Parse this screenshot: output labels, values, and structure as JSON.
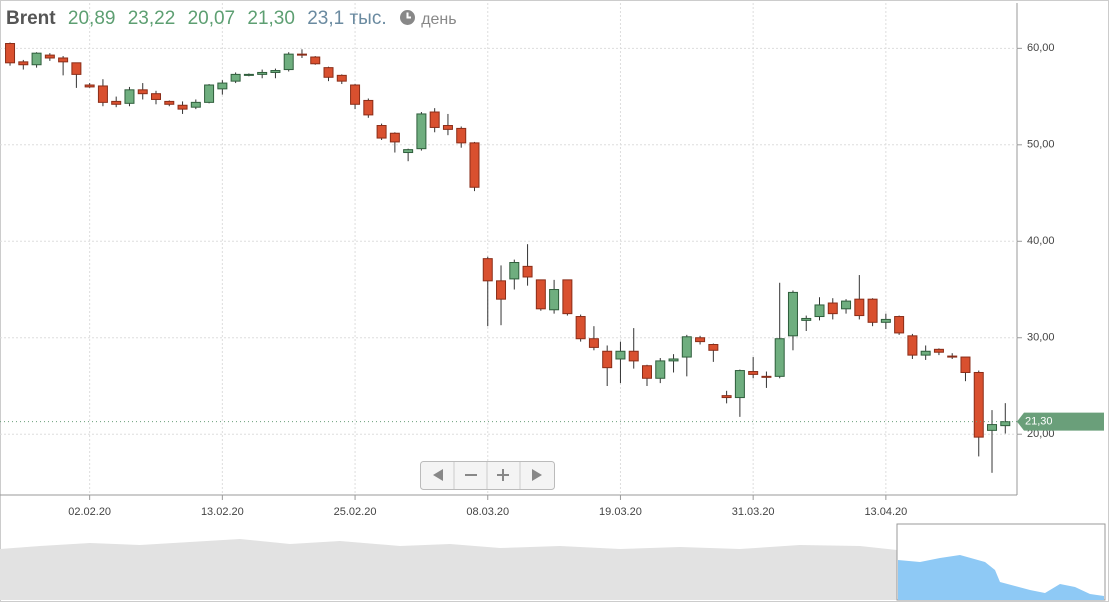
{
  "header": {
    "symbol": "Brent",
    "open": "20,89",
    "high": "23,22",
    "low": "20,07",
    "close": "21,30",
    "volume": "23,1 тыс.",
    "interval": "день"
  },
  "chart_data": {
    "type": "candlestick",
    "categories": [
      null,
      null,
      null,
      null,
      null,
      null,
      "02.02.20",
      null,
      null,
      null,
      null,
      null,
      null,
      null,
      null,
      null,
      "13.02.20",
      null,
      null,
      null,
      null,
      null,
      null,
      null,
      null,
      null,
      "25.02.20",
      null,
      null,
      null,
      null,
      null,
      null,
      null,
      null,
      null,
      "08.03.20",
      null,
      null,
      null,
      null,
      null,
      null,
      null,
      null,
      null,
      "19.03.20",
      null,
      null,
      null,
      null,
      null,
      null,
      null,
      null,
      null,
      "31.03.20",
      null,
      null,
      null,
      null,
      null,
      null,
      null,
      null,
      null,
      "13.04.20",
      null,
      null,
      null,
      null,
      null,
      null,
      null,
      null,
      null
    ],
    "open": [
      60.5,
      58.6,
      58.3,
      59.3,
      59.0,
      58.5,
      56.2,
      56.1,
      54.5,
      54.3,
      55.7,
      55.3,
      54.5,
      54.1,
      53.9,
      54.4,
      55.8,
      56.6,
      57.2,
      57.3,
      57.5,
      57.8,
      59.4,
      59.1,
      58.0,
      57.2,
      56.2,
      54.6,
      52.0,
      51.2,
      49.2,
      49.6,
      53.4,
      52.0,
      51.7,
      50.2,
      38.2,
      35.9,
      36.1,
      37.4,
      36.0,
      32.9,
      36.0,
      32.2,
      29.9,
      28.6,
      27.8,
      28.6,
      27.1,
      25.8,
      27.6,
      28.0,
      30.0,
      29.3,
      24.0,
      23.8,
      26.5,
      26.0,
      26.0,
      30.2,
      31.8,
      32.2,
      33.6,
      33.0,
      34.0,
      34.0,
      31.6,
      32.2,
      30.2,
      28.2,
      28.8,
      28.1,
      28.0,
      26.4,
      20.4,
      20.89
    ],
    "high": [
      60.6,
      58.8,
      59.6,
      59.5,
      59.2,
      58.5,
      56.4,
      56.8,
      55.0,
      56.0,
      56.4,
      55.6,
      54.6,
      54.5,
      54.7,
      56.3,
      56.7,
      57.5,
      57.4,
      57.8,
      57.9,
      59.6,
      59.9,
      59.2,
      58.1,
      57.3,
      56.3,
      54.8,
      52.2,
      51.3,
      49.6,
      53.4,
      53.8,
      53.2,
      51.9,
      50.3,
      38.4,
      37.5,
      38.1,
      39.7,
      36.0,
      36.0,
      36.0,
      32.4,
      31.2,
      29.2,
      29.6,
      31.0,
      27.2,
      27.9,
      28.3,
      30.3,
      30.2,
      29.4,
      24.5,
      26.7,
      28.0,
      26.5,
      35.7,
      34.9,
      32.3,
      34.2,
      34.1,
      34.0,
      36.5,
      34.1,
      32.5,
      32.3,
      30.4,
      29.2,
      28.9,
      28.4,
      28.0,
      26.6,
      22.5,
      23.22
    ],
    "low": [
      58.2,
      57.8,
      58.0,
      58.7,
      57.2,
      55.9,
      55.9,
      54.0,
      53.9,
      54.0,
      54.7,
      54.2,
      54.0,
      53.2,
      53.7,
      54.3,
      55.2,
      56.4,
      57.1,
      56.9,
      56.9,
      57.6,
      59.0,
      58.3,
      56.6,
      56.3,
      53.7,
      52.8,
      50.5,
      49.2,
      48.3,
      49.4,
      51.3,
      51.0,
      49.7,
      45.2,
      31.2,
      31.3,
      35.0,
      35.4,
      32.8,
      32.5,
      32.3,
      29.6,
      28.7,
      25.0,
      25.3,
      26.8,
      25.0,
      25.3,
      26.4,
      26.0,
      29.3,
      27.5,
      23.2,
      21.8,
      25.8,
      24.8,
      25.8,
      28.7,
      30.7,
      31.8,
      31.9,
      32.5,
      31.9,
      31.2,
      30.9,
      30.3,
      27.8,
      27.7,
      28.2,
      27.8,
      25.5,
      17.7,
      16.0,
      20.07
    ],
    "close": [
      58.5,
      58.3,
      59.5,
      59.0,
      58.6,
      57.3,
      56.0,
      54.4,
      54.2,
      55.7,
      55.3,
      54.7,
      54.2,
      53.7,
      54.4,
      56.2,
      56.4,
      57.3,
      57.3,
      57.5,
      57.7,
      59.4,
      59.3,
      58.4,
      57.0,
      56.6,
      54.2,
      53.1,
      50.7,
      50.3,
      49.5,
      53.2,
      51.8,
      51.6,
      50.2,
      45.6,
      35.9,
      34.0,
      37.8,
      36.3,
      33.0,
      35.0,
      32.5,
      29.9,
      29.0,
      26.9,
      28.6,
      27.6,
      25.8,
      27.6,
      27.8,
      30.1,
      29.6,
      28.7,
      23.8,
      26.6,
      26.2,
      25.9,
      29.9,
      34.7,
      32.0,
      33.4,
      32.5,
      33.8,
      32.3,
      31.6,
      31.9,
      30.5,
      28.2,
      28.6,
      28.5,
      28.0,
      26.4,
      19.7,
      21.0,
      21.3
    ],
    "up_color": "#6fae7f",
    "down_color": "#d9502f",
    "ylim": [
      13.7,
      64.7
    ],
    "yticks": [
      {
        "value": 20,
        "label": "20,00"
      },
      {
        "value": 30,
        "label": "30,00"
      },
      {
        "value": 40,
        "label": "40,00"
      },
      {
        "value": 50,
        "label": "50,00"
      },
      {
        "value": 60,
        "label": "60,00"
      }
    ],
    "grid": true,
    "last_price": {
      "value": 21.3,
      "label": "21,30"
    },
    "last_price_color": "#6a9f7a"
  }
}
